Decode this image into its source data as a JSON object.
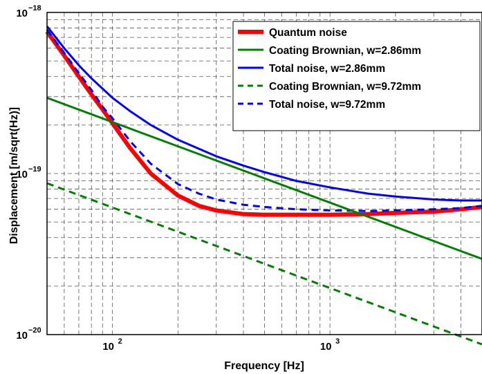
{
  "chart_data": {
    "type": "line",
    "title": "",
    "xlabel": "Frequency [Hz]",
    "ylabel": "Displacement [m/sqrt(Hz)]",
    "xscale": "log",
    "yscale": "log",
    "xlim": [
      50,
      5000
    ],
    "ylim": [
      1e-20,
      1e-18
    ],
    "grid": true,
    "legend_position": "top-right",
    "x_ticks": [
      {
        "base": "10",
        "exp": "2",
        "value": 100
      },
      {
        "base": "10",
        "exp": "3",
        "value": 1000
      }
    ],
    "y_ticks": [
      {
        "base": "10",
        "exp": "−20",
        "value": 1e-20
      },
      {
        "base": "10",
        "exp": "−19",
        "value": 1e-19
      },
      {
        "base": "10",
        "exp": "−18",
        "value": 1e-18
      }
    ],
    "series": [
      {
        "name": "Quantum noise",
        "color": "#ff0000",
        "style": "solid",
        "width": "thick",
        "x": [
          50,
          60,
          70,
          80,
          90,
          100,
          120,
          150,
          200,
          250,
          300,
          400,
          500,
          700,
          1000,
          1500,
          2000,
          3000,
          4000,
          5000
        ],
        "y": [
          7.6e-19,
          5.4e-19,
          4e-19,
          3.1e-19,
          2.5e-19,
          2.05e-19,
          1.45e-19,
          1e-19,
          7.3e-20,
          6.3e-20,
          5.9e-20,
          5.6e-20,
          5.55e-20,
          5.55e-20,
          5.55e-20,
          5.6e-20,
          5.7e-20,
          5.8e-20,
          6e-20,
          6.2e-20
        ]
      },
      {
        "name": "Coating Brownian, w=2.86mm",
        "color": "#007f00",
        "style": "solid",
        "width": "normal",
        "x": [
          50,
          5000
        ],
        "y": [
          2.95e-19,
          2.95e-20
        ]
      },
      {
        "name": "Total noise, w=2.86mm",
        "color": "#0000ff",
        "style": "solid",
        "width": "normal",
        "x": [
          50,
          60,
          70,
          80,
          100,
          120,
          150,
          200,
          300,
          400,
          500,
          700,
          1000,
          1500,
          2000,
          3000,
          4000,
          5000
        ],
        "y": [
          8.2e-19,
          6e-19,
          4.7e-19,
          3.9e-19,
          2.95e-19,
          2.45e-19,
          2e-19,
          1.62e-19,
          1.28e-19,
          1.12e-19,
          1.02e-19,
          9e-20,
          8.2e-20,
          7.5e-20,
          7.2e-20,
          6.9e-20,
          6.8e-20,
          6.8e-20
        ]
      },
      {
        "name": "Coating Brownian, w=9.72mm",
        "color": "#007f00",
        "style": "dashed",
        "width": "normal",
        "x": [
          50,
          5000
        ],
        "y": [
          8.7e-20,
          8.7e-21
        ]
      },
      {
        "name": "Total noise, w=9.72mm",
        "color": "#0000ff",
        "style": "dashed",
        "width": "normal",
        "x": [
          50,
          60,
          70,
          80,
          90,
          100,
          120,
          150,
          200,
          250,
          300,
          400,
          500,
          700,
          1000,
          1500,
          2000,
          3000,
          4000,
          5000
        ],
        "y": [
          7.8e-19,
          5.6e-19,
          4.2e-19,
          3.3e-19,
          2.6e-19,
          2.2e-19,
          1.6e-19,
          1.15e-19,
          8.6e-20,
          7.5e-20,
          6.9e-20,
          6.4e-20,
          6.2e-20,
          6e-20,
          5.9e-20,
          5.85e-20,
          5.9e-20,
          6e-20,
          6.1e-20,
          6.3e-20
        ]
      }
    ]
  }
}
